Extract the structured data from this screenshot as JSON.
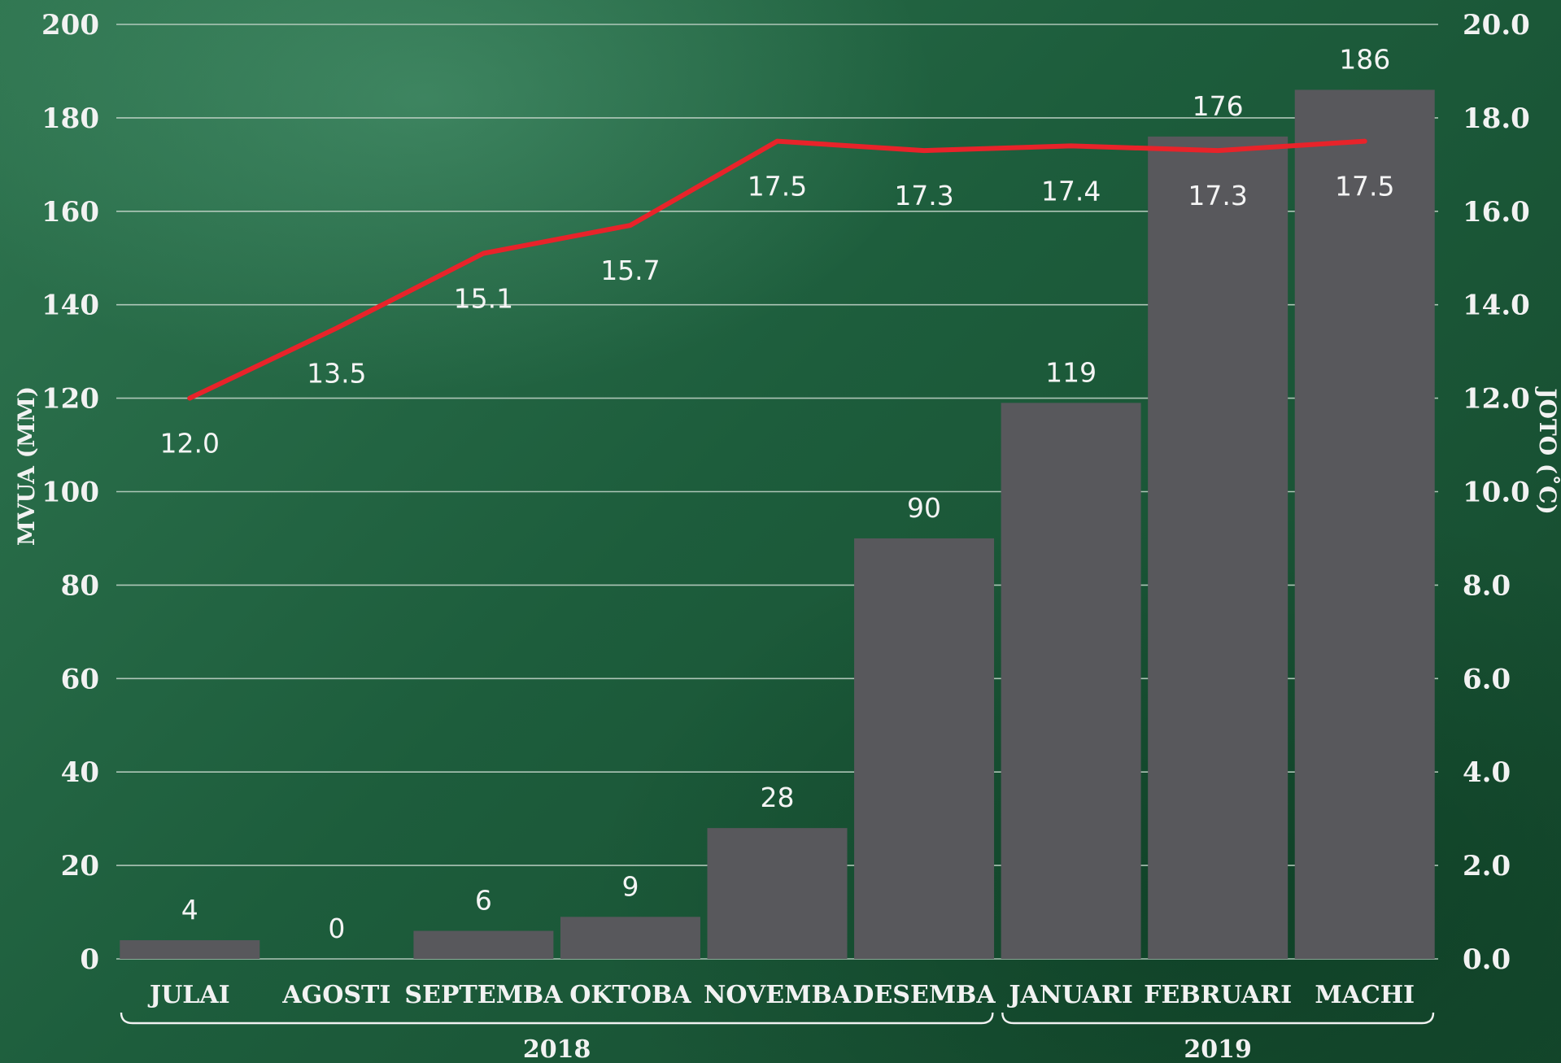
{
  "chart_data": {
    "type": "bar",
    "categories": [
      "JULAI",
      "AGOSTI",
      "SEPTEMBA",
      "OKTOBA",
      "NOVEMBA",
      "DESEMBA",
      "JANUARI",
      "FEBRUARI",
      "MACHI"
    ],
    "groups": [
      {
        "label": "2018",
        "from": 0,
        "to": 5
      },
      {
        "label": "2019",
        "from": 6,
        "to": 8
      }
    ],
    "series": [
      {
        "values": [
          4,
          0,
          6,
          9,
          28,
          90,
          119,
          176,
          186
        ],
        "labels": [
          "4",
          "0",
          "6",
          "9",
          "28",
          "90",
          "119",
          "176",
          "186"
        ],
        "axis": "left",
        "kind": "bar",
        "color": "#58585c"
      },
      {
        "values": [
          12.0,
          13.5,
          15.1,
          15.7,
          17.5,
          17.3,
          17.4,
          17.3,
          17.5
        ],
        "labels": [
          "12.0",
          "13.5",
          "15.1",
          "15.7",
          "17.5",
          "17.3",
          "17.4",
          "17.3",
          "17.5"
        ],
        "axis": "right",
        "kind": "line",
        "color": "#e8232a"
      }
    ],
    "ylabel": "MVUA (MM)",
    "y2label": "JOTO (˚C)",
    "ylim": [
      0,
      200
    ],
    "y2lim": [
      0,
      20
    ],
    "yticks": [
      "0",
      "20",
      "40",
      "60",
      "80",
      "100",
      "120",
      "140",
      "160",
      "180",
      "200"
    ],
    "y2ticks": [
      "0.0",
      "2.0",
      "4.0",
      "6.0",
      "8.0",
      "10.0",
      "12.0",
      "14.0",
      "16.0",
      "18.0",
      "20.0"
    ],
    "grid": true
  }
}
